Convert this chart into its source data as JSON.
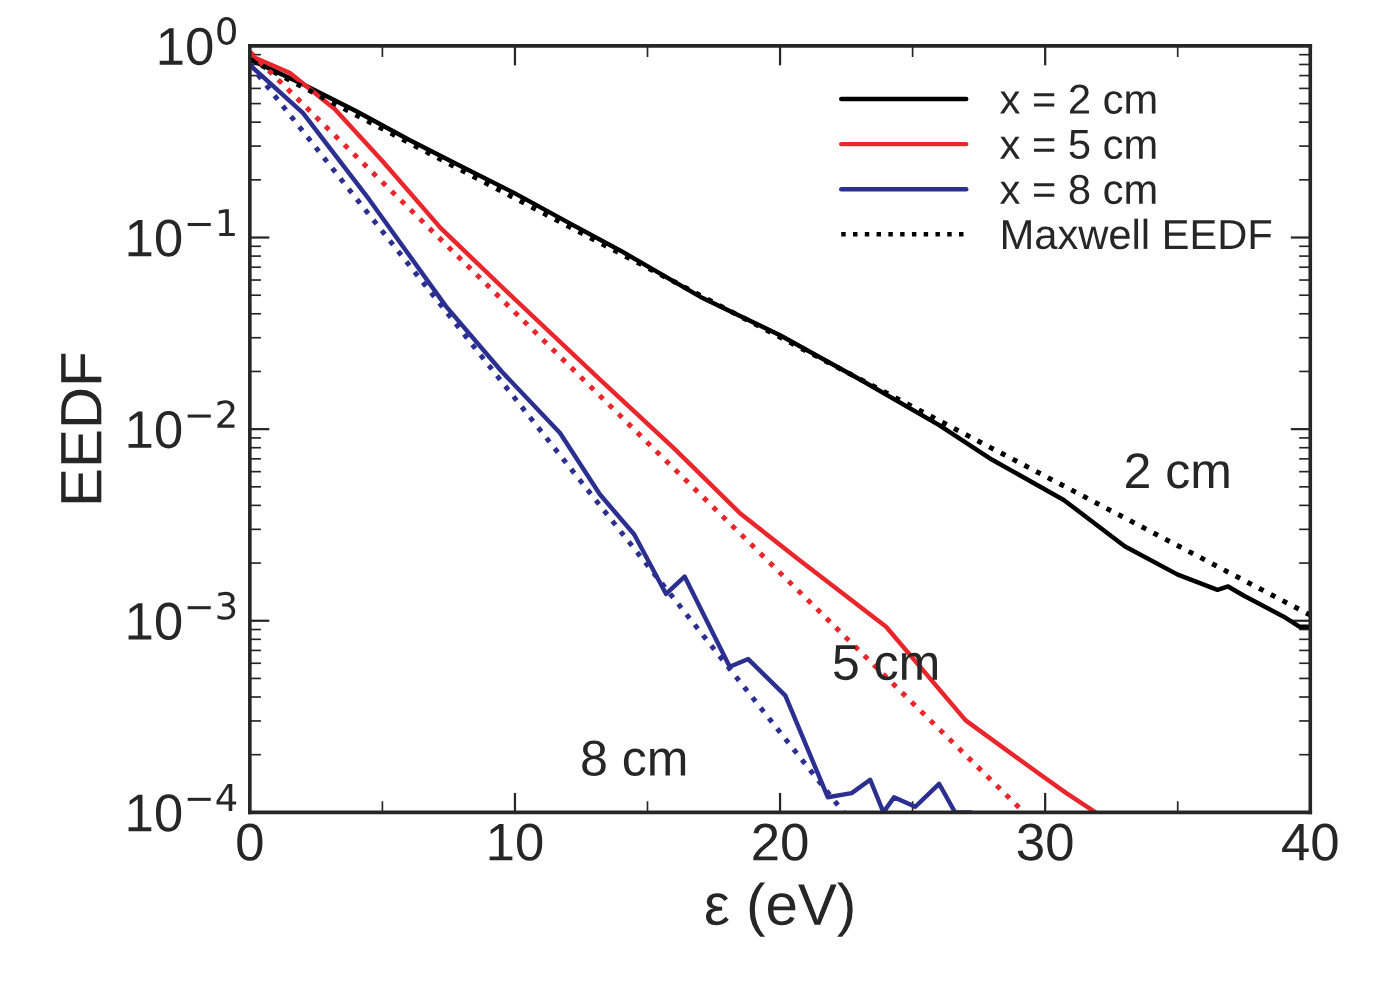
{
  "chart_data": {
    "type": "line",
    "xlabel": "ε (eV)",
    "ylabel": "EEDF",
    "log": "y",
    "xlim": [
      0,
      40
    ],
    "xticks": [
      0,
      10,
      20,
      30,
      40
    ],
    "ylim": [
      0.0001,
      1
    ],
    "yticks": [
      {
        "value": 1,
        "label": "10$^{0}$"
      },
      {
        "value": 0.1,
        "label": "10$^{−1}$"
      },
      {
        "value": 0.01,
        "label": "10$^{−2}$"
      },
      {
        "value": 0.001,
        "label": "10$^{−3}$"
      },
      {
        "value": 0.0001,
        "label": "10$^{−4}$"
      }
    ],
    "grid": false,
    "legend": "top right",
    "series": [
      {
        "name": "x = 2 cm",
        "color": "#000000",
        "line_style": "solid",
        "x": [
          0,
          2,
          4,
          6,
          8,
          10,
          12,
          14,
          17,
          20,
          23,
          26,
          28,
          30.7,
          33,
          35,
          36.5,
          36.9,
          37.5,
          39,
          39.6,
          40
        ],
        "values": [
          0.851,
          0.631,
          0.457,
          0.324,
          0.234,
          0.17,
          0.12,
          0.0851,
          0.049,
          0.0309,
          0.0182,
          0.0105,
          0.00692,
          0.00427,
          0.00245,
          0.00174,
          0.00145,
          0.00151,
          0.00135,
          0.00105,
          0.00093,
          0.00093
        ]
      },
      {
        "name": "x = 5 cm",
        "color": "#e8262b",
        "line_style": "solid",
        "x": [
          0,
          1.5,
          3.2,
          5,
          7.2,
          9.6,
          13.2,
          16,
          18.5,
          20.7,
          24,
          27,
          29.8,
          30.8,
          31.9
        ],
        "values": [
          0.891,
          0.724,
          0.468,
          0.251,
          0.112,
          0.0537,
          0.0182,
          0.00794,
          0.00363,
          0.00209,
          0.00093,
          0.000302,
          0.000158,
          0.000126,
          0.0001
        ]
      },
      {
        "name": "x = 8 cm",
        "color": "#2b2f8f",
        "line_style": "solid",
        "x": [
          0,
          2,
          4.5,
          7.4,
          9.5,
          11.7,
          13.2,
          14.5,
          15.7,
          16.4,
          18.1,
          18.8,
          20.2,
          21.8,
          22.7,
          23.4,
          23.9,
          24.3,
          25.1,
          26,
          26.6,
          27.2
        ],
        "values": [
          0.794,
          0.447,
          0.158,
          0.0437,
          0.02,
          0.00955,
          0.00457,
          0.00282,
          0.00138,
          0.0017,
          0.000575,
          0.000631,
          0.000407,
          0.00012,
          0.000126,
          0.000148,
          0.0001,
          0.00012,
          0.000107,
          0.000141,
          0.0001,
          0.0001
        ]
      },
      {
        "name": "Maxwell EEDF",
        "color": "#000000",
        "line_style": "dotted",
        "x": [
          0,
          40
        ],
        "values": [
          0.851,
          0.00107
        ]
      },
      {
        "color": "#e8262b",
        "line_style": "dotted",
        "x": [
          0,
          29.2
        ],
        "values": [
          0.93,
          0.0001
        ]
      },
      {
        "color": "#2b2f8f",
        "line_style": "dotted",
        "x": [
          0,
          22.4
        ],
        "values": [
          0.8,
          0.0001
        ]
      }
    ],
    "annotations": [
      "2 cm",
      "5 cm",
      "8 cm"
    ]
  }
}
